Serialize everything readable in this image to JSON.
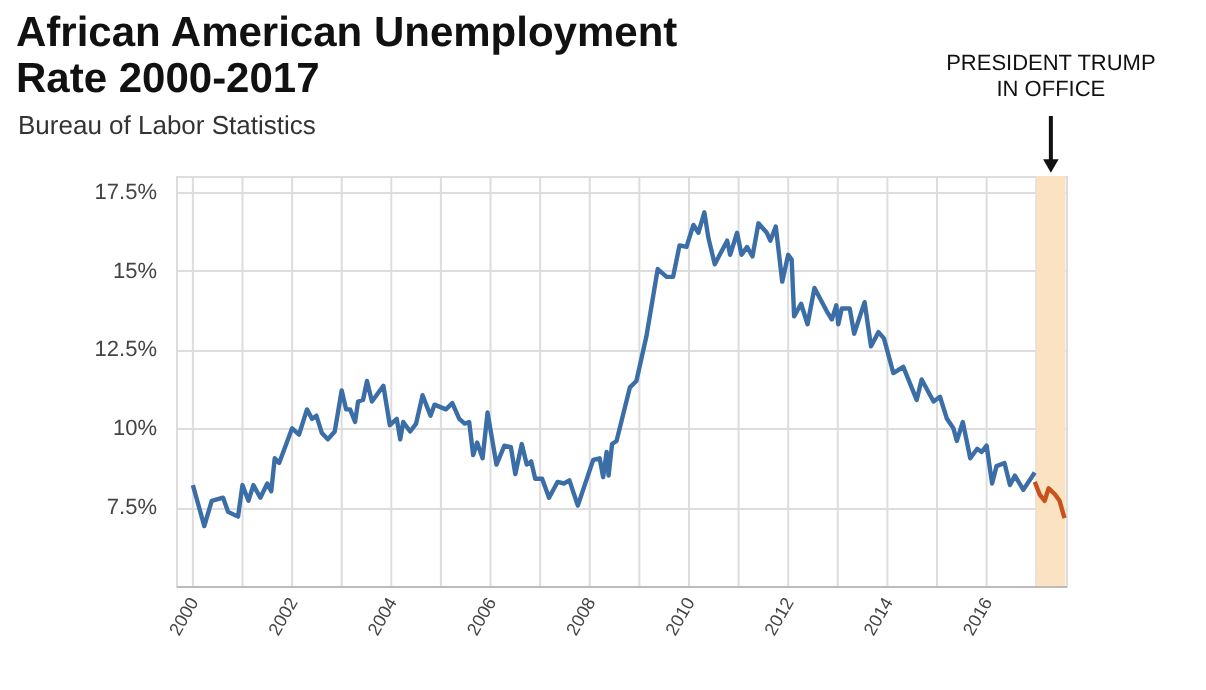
{
  "chart_data": {
    "type": "line",
    "title": "African American Unemployment\nRate 2000-2017",
    "subtitle": "Bureau of Labor Statistics",
    "xlim": [
      1999.66,
      2017.6
    ],
    "ylim": [
      5,
      18
    ],
    "xticks": [
      2000,
      {
        "value": 2001,
        "label": null
      },
      2002,
      {
        "value": 2003,
        "label": null
      },
      2004,
      {
        "value": 2005,
        "label": null
      },
      2006,
      {
        "value": 2007,
        "label": null
      },
      2008,
      {
        "value": 2009,
        "label": null
      },
      2010,
      {
        "value": 2011,
        "label": null
      },
      2012,
      {
        "value": 2013,
        "label": null
      },
      2014,
      {
        "value": 2015,
        "label": null
      },
      2016,
      {
        "value": 2017,
        "label": null
      }
    ],
    "yticks": [
      {
        "value": 7.5,
        "label": "7.5%"
      },
      {
        "value": 10,
        "label": "10%"
      },
      {
        "value": 12.5,
        "label": "12.5%"
      },
      {
        "value": 15,
        "label": "15%"
      },
      {
        "value": 17.5,
        "label": "17.5%"
      }
    ],
    "grid": true,
    "line_style": "solid",
    "marker": "none",
    "bands": [
      {
        "axis": "x",
        "from": 2017.0,
        "to": 2017.59,
        "label": "PRESIDENT TRUMP\nIN OFFICE",
        "color": "#fbe2c2"
      }
    ],
    "series": [
      {
        "color": "#3b6ea6",
        "x": [
          2000.0,
          2000.23,
          2000.38,
          2000.61,
          2000.71,
          2000.91,
          2001.0,
          2001.12,
          2001.22,
          2001.36,
          2001.5,
          2001.58,
          2001.65,
          2001.74,
          2002.0,
          2002.14,
          2002.3,
          2002.4,
          2002.49,
          2002.6,
          2002.72,
          2002.86,
          2003.0,
          2003.09,
          2003.17,
          2003.27,
          2003.33,
          2003.43,
          2003.51,
          2003.61,
          2003.84,
          2003.97,
          2004.11,
          2004.18,
          2004.24,
          2004.38,
          2004.5,
          2004.63,
          2004.79,
          2004.87,
          2005.1,
          2005.23,
          2005.37,
          2005.48,
          2005.57,
          2005.65,
          2005.73,
          2005.84,
          2005.94,
          2006.12,
          2006.28,
          2006.41,
          2006.5,
          2006.63,
          2006.73,
          2006.82,
          2006.9,
          2007.04,
          2007.18,
          2007.35,
          2007.48,
          2007.59,
          2007.76,
          2008.07,
          2008.2,
          2008.27,
          2008.34,
          2008.38,
          2008.45,
          2008.54,
          2008.81,
          2008.94,
          2009.14,
          2009.37,
          2009.55,
          2009.68,
          2009.81,
          2009.95,
          2010.09,
          2010.19,
          2010.31,
          2010.39,
          2010.52,
          2010.77,
          2010.83,
          2010.97,
          2011.06,
          2011.17,
          2011.28,
          2011.4,
          2011.57,
          2011.64,
          2011.75,
          2011.88,
          2012.0,
          2012.07,
          2012.12,
          2012.26,
          2012.39,
          2012.53,
          2012.8,
          2012.88,
          2012.97,
          2013.01,
          2013.08,
          2013.24,
          2013.33,
          2013.54,
          2013.67,
          2013.82,
          2013.93,
          2014.12,
          2014.32,
          2014.59,
          2014.69,
          2014.93,
          2015.06,
          2015.2,
          2015.33,
          2015.4,
          2015.52,
          2015.67,
          2015.81,
          2015.9,
          2016.0,
          2016.11,
          2016.2,
          2016.36,
          2016.47,
          2016.57,
          2016.74,
          2016.97
        ],
        "values": [
          8.2,
          6.9,
          7.7,
          7.8,
          7.35,
          7.2,
          8.2,
          7.7,
          8.2,
          7.8,
          8.25,
          8.0,
          9.05,
          8.9,
          10.0,
          9.8,
          10.6,
          10.3,
          10.4,
          9.85,
          9.65,
          9.9,
          11.2,
          10.6,
          10.6,
          10.2,
          10.85,
          10.9,
          11.5,
          10.85,
          11.35,
          10.1,
          10.3,
          9.65,
          10.2,
          9.9,
          10.15,
          11.05,
          10.4,
          10.75,
          10.6,
          10.8,
          10.3,
          10.15,
          10.2,
          9.15,
          9.55,
          9.05,
          10.5,
          8.85,
          9.45,
          9.4,
          8.55,
          9.5,
          8.85,
          8.95,
          8.4,
          8.4,
          7.8,
          8.3,
          8.25,
          8.35,
          7.55,
          9.0,
          9.05,
          8.45,
          9.25,
          8.5,
          9.5,
          9.6,
          11.3,
          11.5,
          12.9,
          15.05,
          14.8,
          14.8,
          15.8,
          15.75,
          16.45,
          16.2,
          16.85,
          16.05,
          15.2,
          15.95,
          15.5,
          16.2,
          15.5,
          15.75,
          15.45,
          16.5,
          16.2,
          15.95,
          16.4,
          14.65,
          15.5,
          15.35,
          13.55,
          13.95,
          13.3,
          14.45,
          13.65,
          13.45,
          13.9,
          13.3,
          13.8,
          13.8,
          13.0,
          14.0,
          12.6,
          13.05,
          12.85,
          11.75,
          11.95,
          10.9,
          11.55,
          10.85,
          11.0,
          10.3,
          10.0,
          9.6,
          10.2,
          9.05,
          9.35,
          9.25,
          9.45,
          8.25,
          8.8,
          8.9,
          8.2,
          8.5,
          8.05,
          8.6
        ]
      },
      {
        "color": "#c8531a",
        "x": [
          2016.97,
          2017.07,
          2017.17,
          2017.25,
          2017.38,
          2017.47,
          2017.57
        ],
        "values": [
          8.3,
          7.9,
          7.7,
          8.1,
          7.9,
          7.7,
          7.15
        ]
      }
    ]
  }
}
